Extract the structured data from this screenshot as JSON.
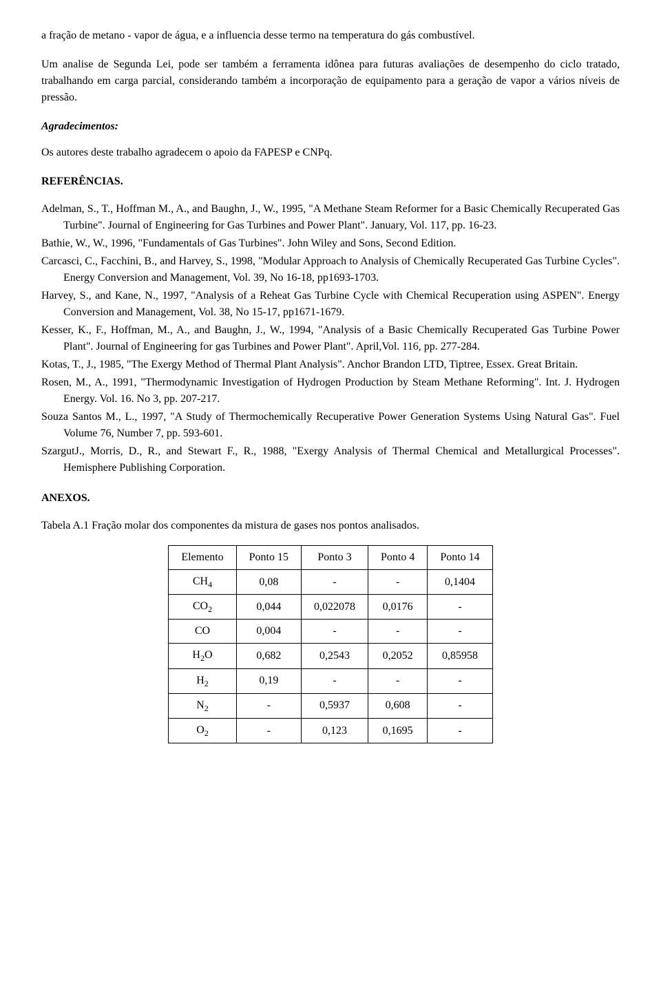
{
  "intro_paragraph": "a fração de metano - vapor de água, e a influencia desse termo na temperatura do gás combustível.",
  "second_paragraph": "Um analise de Segunda Lei, pode ser também a ferramenta idônea para futuras avaliações de desempenho do ciclo tratado, trabalhando em carga parcial, considerando também a incorporação de equipamento para a geração de vapor a vários níveis de pressão.",
  "agradecimentos_heading": "Agradecimentos:",
  "agradecimentos_text": "Os autores deste trabalho agradecem o apoio da FAPESP e CNPq.",
  "referencias_heading": "REFERÊNCIAS.",
  "references": [
    "Adelman, S., T., Hoffman M., A., and Baughn, J., W., 1995, \"A Methane Steam Reformer for a Basic Chemically Recuperated Gas Turbine\". Journal of Engineering for Gas Turbines and Power Plant\". January, Vol. 117, pp. 16-23.",
    "Bathie, W., W., 1996, \"Fundamentals of Gas Turbines\". John Wiley and Sons, Second Edition.",
    "Carcasci, C., Facchini, B., and Harvey, S., 1998, \"Modular Approach to Analysis of Chemically Recuperated Gas Turbine Cycles\". Energy Conversion and Management, Vol. 39, No 16-18, pp1693-1703.",
    "Harvey, S., and Kane, N., 1997, \"Analysis of a Reheat Gas Turbine Cycle with Chemical Recuperation using ASPEN\". Energy Conversion and Management, Vol. 38, No 15-17, pp1671-1679.",
    "Kesser, K., F., Hoffman, M., A., and Baughn, J., W., 1994, \"Analysis of a Basic Chemically Recuperated Gas Turbine Power Plant\". Journal of Engineering for gas Turbines and Power Plant\". April,Vol. 116, pp. 277-284.",
    "Kotas, T., J., 1985, \"The Exergy Method of Thermal Plant Analysis\". Anchor Brandon LTD, Tiptree, Essex. Great Britain.",
    "Rosen, M., A., 1991, \"Thermodynamic Investigation of Hydrogen Production by Steam Methane Reforming\". Int. J. Hydrogen Energy. Vol. 16. No 3, pp. 207-217.",
    "Souza Santos M., L., 1997, \"A Study of Thermochemically Recuperative Power Generation Systems Using Natural Gas\". Fuel Volume 76, Number 7, pp. 593-601.",
    "SzargutJ., Morris, D., R., and Stewart F., R., 1988, \"Exergy Analysis of Thermal Chemical and Metallurgical Processes\". Hemisphere Publishing Corporation."
  ],
  "anexos_heading": "ANEXOS.",
  "table_caption": "Tabela A.1 Fração molar dos componentes da mistura de gases nos pontos analisados.",
  "table": {
    "columns": [
      "Elemento",
      "Ponto 15",
      "Ponto 3",
      "Ponto 4",
      "Ponto 14"
    ],
    "rows": [
      {
        "label": "CH",
        "sub": "4",
        "values": [
          "0,08",
          "-",
          "-",
          "0,1404"
        ]
      },
      {
        "label": "CO",
        "sub": "2",
        "values": [
          "0,044",
          "0,022078",
          "0,0176",
          "-"
        ]
      },
      {
        "label": "CO",
        "sub": "",
        "values": [
          "0,004",
          "-",
          "-",
          "-"
        ]
      },
      {
        "label": "H",
        "sub": "2",
        "label2": "O",
        "values": [
          "0,682",
          "0,2543",
          "0,2052",
          "0,85958"
        ]
      },
      {
        "label": "H",
        "sub": "2",
        "values": [
          "0,19",
          "-",
          "-",
          "-"
        ]
      },
      {
        "label": "N",
        "sub": "2",
        "values": [
          "-",
          "0,5937",
          "0,608",
          "-"
        ]
      },
      {
        "label": "O",
        "sub": "2",
        "values": [
          "-",
          "0,123",
          "0,1695",
          "-"
        ]
      }
    ]
  }
}
